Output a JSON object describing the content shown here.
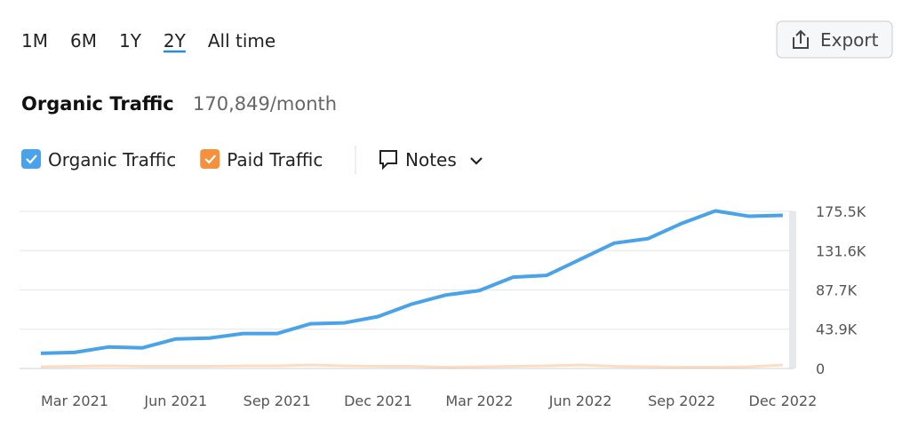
{
  "ui": {
    "periods": [
      "1M",
      "6M",
      "1Y",
      "2Y",
      "All time"
    ],
    "active_period": "2Y",
    "export": "Export",
    "notes": "Notes"
  },
  "chart_data": {
    "type": "line",
    "title": "Organic Traffic",
    "subtitle": "170,849/month",
    "categories": [
      null,
      "Mar 2021",
      null,
      null,
      "Jun 2021",
      null,
      null,
      "Sep 2021",
      null,
      null,
      "Dec 2021",
      null,
      null,
      "Mar 2022",
      null,
      null,
      "Jun 2022",
      null,
      null,
      "Sep 2022",
      null,
      null,
      "Dec 2022"
    ],
    "series": [
      {
        "name": "Organic Traffic",
        "color": "#4aa3e8",
        "values": [
          17000,
          18000,
          24000,
          23000,
          33000,
          34000,
          39000,
          39000,
          50000,
          51000,
          58000,
          72000,
          82000,
          87000,
          102000,
          104000,
          122000,
          140000,
          145000,
          162000,
          176000,
          170000,
          171000
        ]
      },
      {
        "name": "Paid Traffic",
        "color": "#f5903d",
        "values": [
          2000,
          2500,
          3000,
          2500,
          2500,
          2500,
          3000,
          3000,
          4000,
          3000,
          2500,
          2500,
          1500,
          2000,
          2500,
          3000,
          4000,
          2500,
          2000,
          1500,
          1500,
          2000,
          4000
        ]
      }
    ],
    "ylim": [
      0,
      175500
    ],
    "yticks": [
      0,
      {
        "value": 43900,
        "label": "43.9K"
      },
      {
        "value": 87700,
        "label": "87.7K"
      },
      {
        "value": 131600,
        "label": "131.6K"
      },
      {
        "value": 175500,
        "label": "175.5K"
      }
    ],
    "grid": true
  }
}
